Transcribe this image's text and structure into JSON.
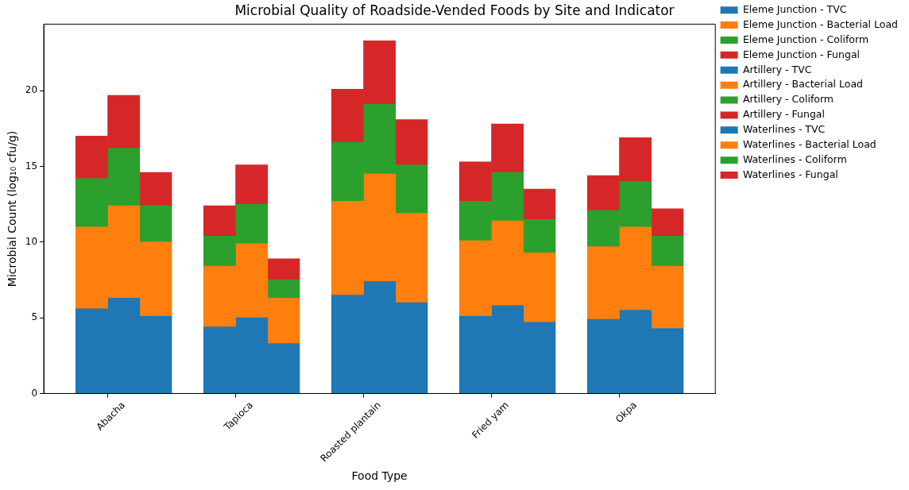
{
  "chart_data": {
    "type": "bar",
    "title": "Microbial Quality of Roadside-Vended Foods by Site and Indicator",
    "xlabel": "Food Type",
    "ylabel": "Microbial Count (log₁₀ cfu/g)",
    "categories": [
      null,
      null,
      "Abacha",
      null,
      null,
      null,
      "Tapioca",
      null,
      null,
      null,
      "Roasted plantain",
      null,
      null,
      null,
      "Fried yam",
      null,
      null,
      null,
      "Okpa",
      null,
      null
    ],
    "stacked": true,
    "ylim": [
      0,
      24.4
    ],
    "yticks": [
      0,
      5,
      10,
      15,
      20
    ],
    "grid": false,
    "legend": "right",
    "series": [
      {
        "name": "Eleme Junction - TVC",
        "color": "#1f77b4",
        "values": [
          null,
          5.6,
          null,
          null,
          null,
          4.4,
          null,
          null,
          null,
          6.5,
          null,
          null,
          null,
          5.1,
          null,
          null,
          null,
          4.9,
          null,
          null,
          null
        ]
      },
      {
        "name": "Eleme Junction - Bacterial Load",
        "color": "#ff7f0e",
        "values": [
          null,
          5.4,
          null,
          null,
          null,
          4.0,
          null,
          null,
          null,
          6.2,
          null,
          null,
          null,
          5.0,
          null,
          null,
          null,
          4.8,
          null,
          null,
          null
        ]
      },
      {
        "name": "Eleme Junction - Coliform",
        "color": "#2ca02c",
        "values": [
          null,
          3.2,
          null,
          null,
          null,
          2.0,
          null,
          null,
          null,
          3.9,
          null,
          null,
          null,
          2.6,
          null,
          null,
          null,
          2.4,
          null,
          null,
          null
        ]
      },
      {
        "name": "Eleme Junction - Fungal",
        "color": "#d62728",
        "values": [
          null,
          2.8,
          null,
          null,
          null,
          2.0,
          null,
          null,
          null,
          3.5,
          null,
          null,
          null,
          2.6,
          null,
          null,
          null,
          2.3,
          null,
          null,
          null
        ]
      },
      {
        "name": "Artillery - TVC",
        "color": "#1f77b4",
        "values": [
          null,
          null,
          6.3,
          null,
          null,
          null,
          5.0,
          null,
          null,
          null,
          7.4,
          null,
          null,
          null,
          5.8,
          null,
          null,
          null,
          5.5,
          null,
          null
        ]
      },
      {
        "name": "Artillery - Bacterial Load",
        "color": "#ff7f0e",
        "values": [
          null,
          null,
          6.1,
          null,
          null,
          null,
          4.9,
          null,
          null,
          null,
          7.1,
          null,
          null,
          null,
          5.6,
          null,
          null,
          null,
          5.5,
          null,
          null
        ]
      },
      {
        "name": "Artillery - Coliform",
        "color": "#2ca02c",
        "values": [
          null,
          null,
          3.8,
          null,
          null,
          null,
          2.6,
          null,
          null,
          null,
          4.6,
          null,
          null,
          null,
          3.2,
          null,
          null,
          null,
          3.0,
          null,
          null
        ]
      },
      {
        "name": "Artillery - Fungal",
        "color": "#d62728",
        "values": [
          null,
          null,
          3.5,
          null,
          null,
          null,
          2.6,
          null,
          null,
          null,
          4.2,
          null,
          null,
          null,
          3.2,
          null,
          null,
          null,
          2.9,
          null,
          null
        ]
      },
      {
        "name": "Waterlines - TVC",
        "color": "#1f77b4",
        "values": [
          null,
          null,
          null,
          5.1,
          null,
          null,
          null,
          3.3,
          null,
          null,
          null,
          6.0,
          null,
          null,
          null,
          4.7,
          null,
          null,
          null,
          4.3,
          null
        ]
      },
      {
        "name": "Waterlines - Bacterial Load",
        "color": "#ff7f0e",
        "values": [
          null,
          null,
          null,
          4.9,
          null,
          null,
          null,
          3.0,
          null,
          null,
          null,
          5.9,
          null,
          null,
          null,
          4.6,
          null,
          null,
          null,
          4.1,
          null
        ]
      },
      {
        "name": "Waterlines - Coliform",
        "color": "#2ca02c",
        "values": [
          null,
          null,
          null,
          2.4,
          null,
          null,
          null,
          1.2,
          null,
          null,
          null,
          3.2,
          null,
          null,
          null,
          2.2,
          null,
          null,
          null,
          2.0,
          null
        ]
      },
      {
        "name": "Waterlines - Fungal",
        "color": "#d62728",
        "values": [
          null,
          null,
          null,
          2.2,
          null,
          null,
          null,
          1.4,
          null,
          null,
          null,
          3.0,
          null,
          null,
          null,
          2.0,
          null,
          null,
          null,
          1.8,
          null
        ]
      }
    ]
  }
}
